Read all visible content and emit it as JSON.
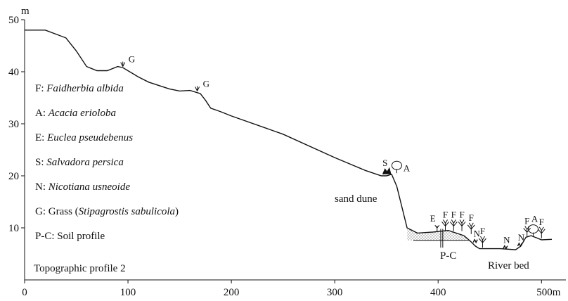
{
  "chart_data": {
    "type": "line",
    "title": "Topographic profile 2",
    "x_unit": "m",
    "y_unit": "m",
    "xlim": [
      0,
      510
    ],
    "ylim": [
      0,
      50
    ],
    "x_ticks": [
      "0",
      "100",
      "200",
      "300",
      "400",
      "500m"
    ],
    "y_ticks": [
      "10",
      "20",
      "30",
      "40",
      "50"
    ],
    "y_axis_unit_label": "m",
    "profile": {
      "x": [
        0,
        20,
        40,
        50,
        60,
        70,
        80,
        90,
        95,
        110,
        120,
        140,
        150,
        160,
        170,
        175,
        180,
        190,
        200,
        250,
        300,
        330,
        345,
        350,
        355,
        360,
        370,
        380,
        395,
        410,
        425,
        432,
        436,
        440,
        445,
        460,
        475,
        480,
        485,
        490,
        500,
        510
      ],
      "y": [
        48,
        48,
        46.5,
        44,
        41,
        40.2,
        40.2,
        41,
        40.8,
        39,
        38,
        36.7,
        36.3,
        36.4,
        35.8,
        34.5,
        33,
        32.3,
        31.5,
        28,
        23.5,
        21,
        20,
        20,
        20.3,
        18,
        10,
        9,
        9.2,
        9.5,
        8.5,
        7.3,
        6.5,
        6,
        6,
        6,
        5.8,
        6.5,
        8.2,
        8.5,
        7.7,
        7.8
      ]
    },
    "legend": [
      {
        "code": "F",
        "name": "Faidherbia albida"
      },
      {
        "code": "A",
        "name": "Acacia erioloba"
      },
      {
        "code": "E",
        "name": "Euclea pseudebenus"
      },
      {
        "code": "S",
        "name": "Salvadora persica"
      },
      {
        "code": "N",
        "name": "Nicotiana usneoide"
      },
      {
        "code": "G",
        "name": "Grass",
        "detail": "Stipagrostis sabulicola"
      },
      {
        "code": "P-C",
        "name": "Soil profile"
      }
    ],
    "annotations": [
      {
        "text": "G",
        "x": 95,
        "y": 41
      },
      {
        "text": "G",
        "x": 167,
        "y": 36.3
      },
      {
        "text": "S",
        "x": 350,
        "y": 20.3
      },
      {
        "text": "A",
        "x": 360,
        "y": 20.5
      },
      {
        "text": "E",
        "x": 399,
        "y": 9.3
      },
      {
        "text": "F",
        "x": 407,
        "y": 9.4
      },
      {
        "text": "F",
        "x": 415,
        "y": 9.4
      },
      {
        "text": "F",
        "x": 423,
        "y": 9.4
      },
      {
        "text": "F",
        "x": 432,
        "y": 8.8
      },
      {
        "text": "N",
        "x": 436,
        "y": 7.2
      },
      {
        "text": "F",
        "x": 443,
        "y": 6.2
      },
      {
        "text": "N",
        "x": 465,
        "y": 6
      },
      {
        "text": "N",
        "x": 479,
        "y": 6.5
      },
      {
        "text": "F",
        "x": 486,
        "y": 8.2
      },
      {
        "text": "A",
        "x": 492,
        "y": 8.3
      },
      {
        "text": "F",
        "x": 500,
        "y": 8
      }
    ],
    "feature_labels": {
      "sand_dune": "sand dune",
      "soil_profile": "P-C",
      "river_bed": "River bed"
    }
  }
}
